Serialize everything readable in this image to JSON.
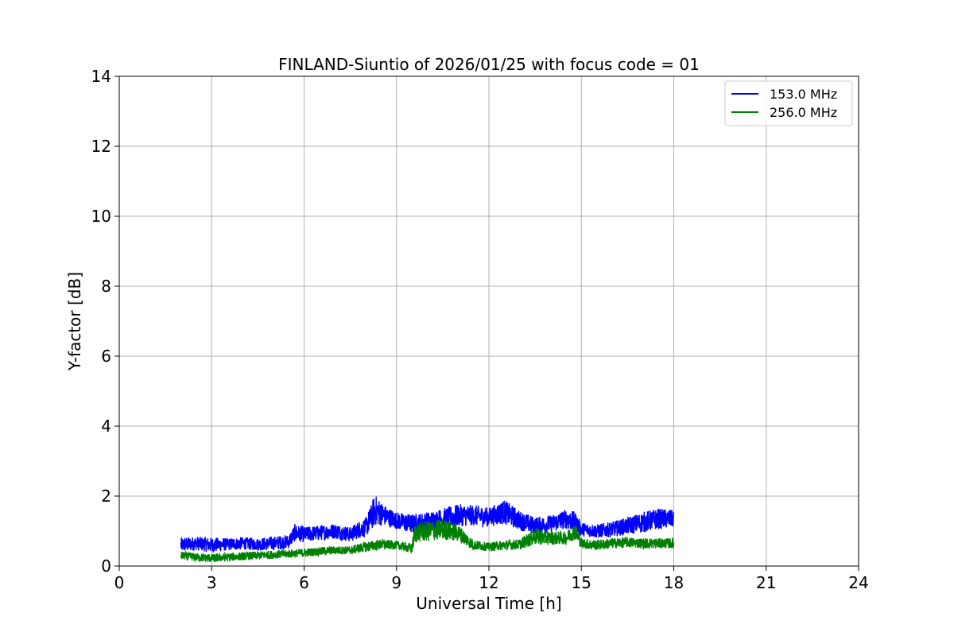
{
  "chart_data": {
    "type": "line",
    "title": "FINLAND-Siuntio of 2026/01/25 with focus code = 01",
    "xlabel": "Universal Time [h]",
    "ylabel": "Y-factor [dB]",
    "xlim": [
      0,
      24
    ],
    "ylim": [
      0,
      14
    ],
    "xticks": [
      0,
      3,
      6,
      9,
      12,
      15,
      18,
      21,
      24
    ],
    "yticks": [
      0,
      2,
      4,
      6,
      8,
      10,
      12,
      14
    ],
    "grid": true,
    "legend_position": "top-right",
    "series": [
      {
        "name": "153.0 MHz",
        "color": "#0000ff",
        "x": [
          2.0,
          2.5,
          3.0,
          3.5,
          4.0,
          4.5,
          5.0,
          5.5,
          5.7,
          6.0,
          6.5,
          7.0,
          7.5,
          7.8,
          8.0,
          8.3,
          8.6,
          9.0,
          9.5,
          10.0,
          10.5,
          11.0,
          11.5,
          12.0,
          12.5,
          13.0,
          13.5,
          14.0,
          14.5,
          14.8,
          15.0,
          15.5,
          16.0,
          16.5,
          17.0,
          17.5,
          18.0
        ],
        "mid": [
          0.6,
          0.65,
          0.6,
          0.62,
          0.65,
          0.62,
          0.65,
          0.7,
          0.95,
          0.9,
          0.95,
          1.0,
          0.9,
          1.05,
          1.1,
          1.6,
          1.45,
          1.3,
          1.2,
          1.25,
          1.35,
          1.45,
          1.45,
          1.4,
          1.55,
          1.3,
          1.15,
          1.2,
          1.35,
          1.25,
          1.05,
          1.0,
          1.05,
          1.15,
          1.25,
          1.35,
          1.35
        ],
        "spread": [
          0.22,
          0.2,
          0.22,
          0.18,
          0.18,
          0.18,
          0.2,
          0.2,
          0.25,
          0.22,
          0.22,
          0.22,
          0.22,
          0.25,
          0.28,
          0.45,
          0.3,
          0.25,
          0.28,
          0.3,
          0.3,
          0.32,
          0.3,
          0.28,
          0.35,
          0.28,
          0.25,
          0.25,
          0.28,
          0.3,
          0.2,
          0.2,
          0.22,
          0.25,
          0.3,
          0.3,
          0.25
        ]
      },
      {
        "name": "256.0 MHz",
        "color": "#008000",
        "x": [
          2.0,
          2.5,
          3.0,
          3.5,
          4.0,
          4.5,
          5.0,
          5.5,
          6.0,
          6.5,
          7.0,
          7.5,
          8.0,
          8.5,
          9.0,
          9.5,
          9.6,
          10.0,
          10.5,
          11.0,
          11.5,
          12.0,
          12.5,
          13.0,
          13.5,
          14.0,
          14.5,
          14.8,
          15.0,
          15.5,
          16.0,
          16.5,
          17.0,
          17.5,
          18.0
        ],
        "mid": [
          0.3,
          0.25,
          0.22,
          0.25,
          0.28,
          0.3,
          0.33,
          0.35,
          0.38,
          0.42,
          0.45,
          0.45,
          0.55,
          0.62,
          0.6,
          0.5,
          0.95,
          1.0,
          1.05,
          0.95,
          0.6,
          0.55,
          0.6,
          0.62,
          0.85,
          0.8,
          0.8,
          1.0,
          0.65,
          0.6,
          0.65,
          0.68,
          0.65,
          0.65,
          0.65
        ],
        "spread": [
          0.12,
          0.12,
          0.12,
          0.12,
          0.12,
          0.12,
          0.12,
          0.12,
          0.12,
          0.12,
          0.12,
          0.12,
          0.15,
          0.15,
          0.12,
          0.15,
          0.28,
          0.3,
          0.3,
          0.25,
          0.15,
          0.12,
          0.15,
          0.15,
          0.25,
          0.2,
          0.18,
          0.25,
          0.15,
          0.15,
          0.15,
          0.15,
          0.15,
          0.15,
          0.15
        ]
      }
    ]
  }
}
